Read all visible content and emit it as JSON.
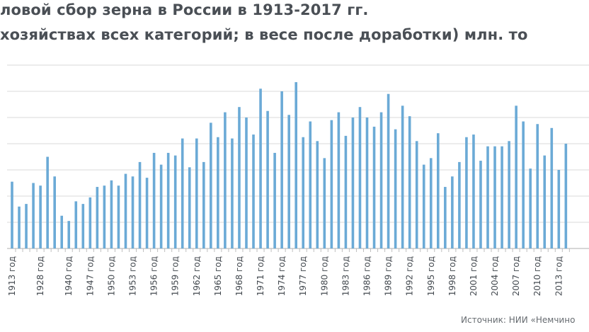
{
  "title": {
    "line1": "ловой сбор зерна в России в 1913-2017 гг.",
    "line2": "хозяйствах всех категорий; в весе после доработки) млн. то"
  },
  "source": "Источник: НИИ «Немчино",
  "colors": {
    "bar": "#6baad6",
    "grid": "#d9d9d9",
    "axis": "#bfbfbf",
    "text": "#444a50"
  },
  "chart_data": {
    "type": "bar",
    "title": "",
    "xlabel": "",
    "ylabel": "",
    "grid": true,
    "ylim": [
      0,
      140
    ],
    "y_ticks": [
      0,
      20,
      40,
      60,
      80,
      100,
      120,
      140
    ],
    "categories": [
      "1913 год",
      "1914 год",
      "1915 год",
      "1916 год",
      "1928 год",
      "1932 год",
      "1937 год",
      "1938 год",
      "1940 год",
      "1945 год",
      "1946 год",
      "1947 год",
      "1948 год",
      "1949 год",
      "1950 год",
      "1951 год",
      "1952 год",
      "1953 год",
      "1954 год",
      "1955 год",
      "1956 год",
      "1957 год",
      "1958 год",
      "1959 год",
      "1960 год",
      "1961 год",
      "1962 год",
      "1963 год",
      "1964 год",
      "1965 год",
      "1966 год",
      "1967 год",
      "1968 год",
      "1969 год",
      "1970 год",
      "1971 год",
      "1972 год",
      "1973 год",
      "1974 год",
      "1975 год",
      "1976 год",
      "1977 год",
      "1978 год",
      "1979 год",
      "1980 год",
      "1981 год",
      "1982 год",
      "1983 год",
      "1984 год",
      "1985 год",
      "1986 год",
      "1987 год",
      "1988 год",
      "1989 год",
      "1990 год",
      "1991 год",
      "1992 год",
      "1993 год",
      "1994 год",
      "1995 год",
      "1996 год",
      "1997 год",
      "1998 год",
      "1999 год",
      "2000 год",
      "2001 год",
      "2002 год",
      "2003 год",
      "2004 год",
      "2005 год",
      "2006 год",
      "2007 год",
      "2008 год",
      "2009 год",
      "2010 год",
      "2011 год",
      "2012 год",
      "2013 год",
      "2014 год"
    ],
    "labeled_categories": [
      "1913 год",
      "1928 год",
      "1940 год",
      "1947 год",
      "1950 год",
      "1953 год",
      "1956 год",
      "1959 год",
      "1962 год",
      "1965 год",
      "1968 год",
      "1971 год",
      "1974 год",
      "1977 год",
      "1980 год",
      "1983 год",
      "1986 год",
      "1989 год",
      "1992 год",
      "1995 год",
      "1998 год",
      "2001 год",
      "2004 год",
      "2007 год",
      "2010 год",
      "2013 год"
    ],
    "values": [
      51,
      32,
      34,
      50,
      48,
      70,
      55,
      25,
      21,
      36,
      34,
      39,
      47,
      48,
      52,
      48,
      57,
      55,
      66,
      54,
      73,
      64,
      73,
      71,
      84,
      62,
      84,
      66,
      96,
      85,
      104,
      84,
      108,
      100,
      87,
      122,
      105,
      73,
      120,
      102,
      127,
      85,
      97,
      82,
      69,
      98,
      104,
      86,
      100,
      108,
      100,
      93,
      104,
      118,
      91,
      109,
      101,
      82,
      64,
      69,
      88,
      47,
      55,
      66,
      85,
      87,
      67,
      78,
      78,
      78,
      82,
      109,
      97,
      61,
      95,
      71,
      92,
      60,
      80
    ]
  }
}
